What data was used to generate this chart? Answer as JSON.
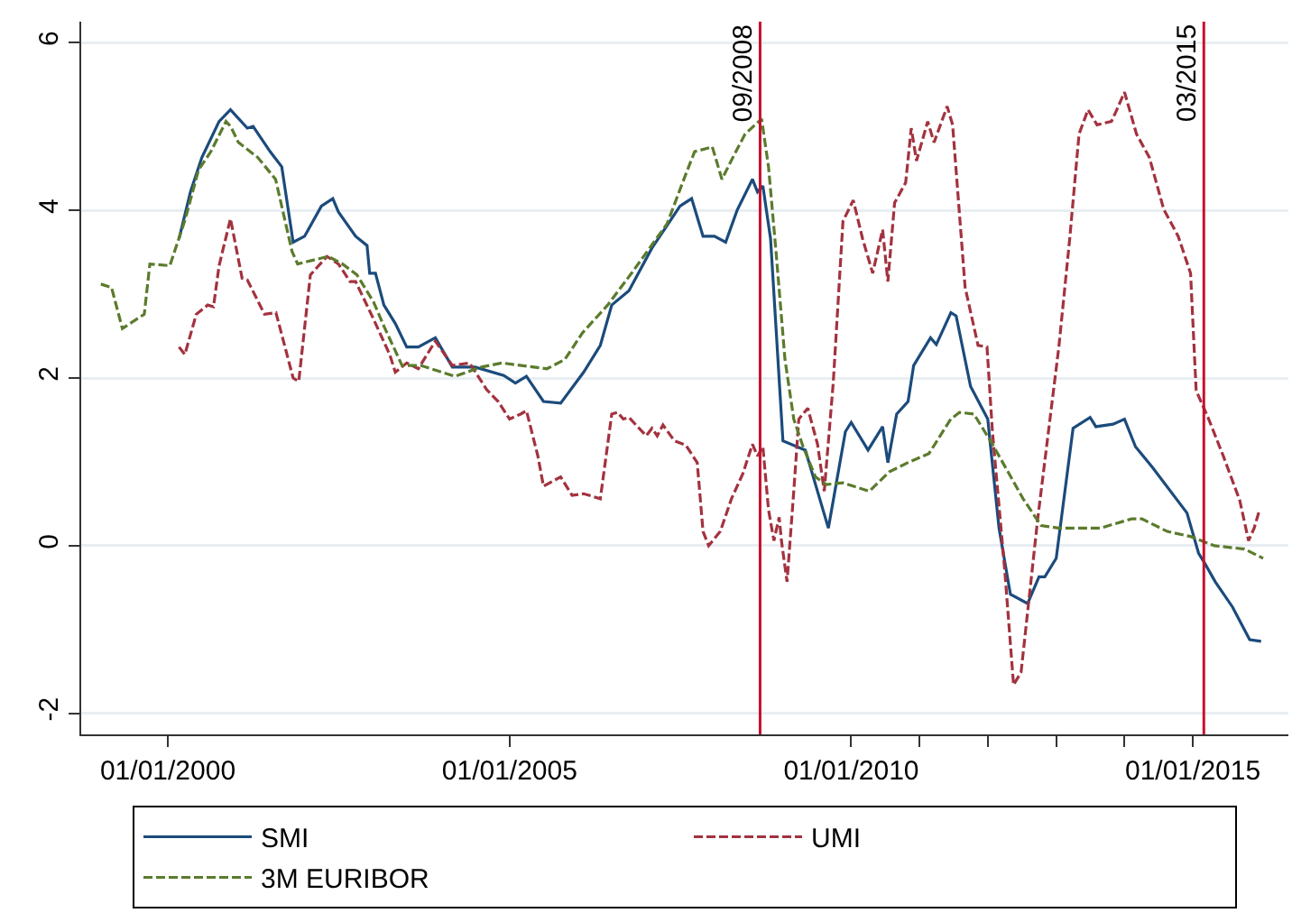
{
  "chart_data": {
    "type": "line",
    "xlim": [
      "1998-09-25",
      "2016-05-26"
    ],
    "ylim": [
      -2.25,
      6.25
    ],
    "xticks": [
      {
        "value": "2000-01-01",
        "label": "01/01/2000"
      },
      {
        "value": "2005-01-01",
        "label": "01/01/2005"
      },
      {
        "value": "2010-01-01",
        "label": "01/01/2010"
      },
      {
        "value": "2011-01-01",
        "label": null
      },
      {
        "value": "2012-01-01",
        "label": null
      },
      {
        "value": "2013-01-01",
        "label": null
      },
      {
        "value": "2014-01-01",
        "label": null
      },
      {
        "value": "2015-01-01",
        "label": "01/01/2015"
      }
    ],
    "yticks": [
      -2,
      0,
      2,
      4,
      6
    ],
    "grid": "y",
    "legend": "bottom",
    "ref_lines": [
      {
        "axis": "x",
        "value": "2008-09",
        "label": "09/2008",
        "color": "#c8102e"
      },
      {
        "axis": "x",
        "value": "2015-03",
        "label": "03/2015",
        "color": "#c8102e"
      }
    ],
    "series": [
      {
        "name": "SMI",
        "color": "#1b4b7c",
        "line_style": "solid",
        "x": [
          "2000-03",
          "2000-05",
          "2000-07",
          "2000-10",
          "2000-12",
          "2001-03",
          "2001-04",
          "2001-07",
          "2001-09",
          "2001-11",
          "2002-01",
          "2002-04",
          "2002-06",
          "2002-07",
          "2002-10",
          "2002-12",
          "2002-12-15",
          "2003-01-15",
          "2003-03",
          "2003-05",
          "2003-07",
          "2003-09",
          "2003-12",
          "2004-03",
          "2004-07",
          "2004-12",
          "2005-02",
          "2005-04",
          "2005-07",
          "2005-10",
          "2006-02",
          "2006-05",
          "2006-07",
          "2006-10",
          "2007-02",
          "2007-07",
          "2007-09",
          "2007-11",
          "2008-01",
          "2008-03",
          "2008-05",
          "2008-07-22",
          "2008-08-18",
          "2008-09-16",
          "2008-10-27",
          "2009-01",
          "2009-05",
          "2009-09",
          "2009-12",
          "2010-01",
          "2010-04",
          "2010-06-18",
          "2010-07-16",
          "2010-09",
          "2010-11",
          "2010-12",
          "2011-03",
          "2011-04",
          "2011-06-18",
          "2011-07-16",
          "2011-10",
          "2012-01",
          "2012-03",
          "2012-05",
          "2012-08",
          "2012-10",
          "2012-11",
          "2013-01",
          "2013-04",
          "2013-07",
          "2013-08",
          "2013-11",
          "2014-01",
          "2014-03",
          "2014-06",
          "2014-12",
          "2015-02",
          "2015-03",
          "2015-05",
          "2015-08",
          "2015-11",
          "2016-01"
        ],
        "values": [
          3.66,
          4.22,
          4.63,
          5.06,
          5.2,
          4.98,
          5.0,
          4.7,
          4.52,
          3.62,
          3.69,
          4.05,
          4.14,
          3.98,
          3.69,
          3.58,
          3.25,
          3.25,
          2.87,
          2.65,
          2.37,
          2.37,
          2.48,
          2.13,
          2.13,
          2.03,
          1.94,
          2.02,
          1.72,
          1.7,
          2.07,
          2.39,
          2.87,
          3.04,
          3.55,
          4.05,
          4.14,
          3.69,
          3.69,
          3.62,
          4.0,
          4.37,
          4.22,
          4.29,
          3.66,
          1.25,
          1.14,
          0.21,
          1.36,
          1.47,
          1.14,
          1.42,
          0.99,
          1.57,
          1.72,
          2.15,
          2.48,
          2.4,
          2.78,
          2.74,
          1.9,
          1.51,
          0.21,
          -0.58,
          -0.69,
          -0.37,
          -0.37,
          -0.15,
          1.4,
          1.53,
          1.42,
          1.45,
          1.51,
          1.18,
          0.93,
          0.39,
          -0.09,
          -0.19,
          -0.43,
          -0.73,
          -1.12,
          -1.14
        ]
      },
      {
        "name": "UMI",
        "color": "#a3323f",
        "line_style": "dashed",
        "x": [
          "2000-03",
          "2000-04",
          "2000-06",
          "2000-08",
          "2000-09",
          "2000-10",
          "2000-12",
          "2001-02",
          "2001-03",
          "2001-06",
          "2001-08",
          "2001-11",
          "2001-12",
          "2002-02",
          "2002-05",
          "2002-07",
          "2002-09",
          "2002-10",
          "2003-01",
          "2003-04",
          "2003-05",
          "2003-07",
          "2003-09",
          "2003-12",
          "2004-03",
          "2004-06",
          "2004-09",
          "2004-11",
          "2005-01",
          "2005-03",
          "2005-04",
          "2005-06",
          "2005-07",
          "2005-10",
          "2005-12",
          "2006-02",
          "2006-05",
          "2006-07",
          "2006-08",
          "2006-09",
          "2006-10",
          "2007-01",
          "2007-02",
          "2007-03",
          "2007-04",
          "2007-06",
          "2007-08",
          "2007-10",
          "2007-11",
          "2007-12",
          "2008-02",
          "2008-04",
          "2008-06",
          "2008-07-22",
          "2008-08-18",
          "2008-09-16",
          "2008-10-16",
          "2008-11-14",
          "2008-12-12",
          "2008-12-24",
          "2009-01-23",
          "2009-02-28",
          "2009-03-27",
          "2009-05-14",
          "2009-07-05",
          "2009-08-10",
          "2009-09-27",
          "2009-11-18",
          "2010-01-12",
          "2010-03-03",
          "2010-04-26",
          "2010-06-18",
          "2010-07-16",
          "2010-08-21",
          "2010-10-19",
          "2010-11-18",
          "2010-12-16",
          "2011-02-14",
          "2011-03-20",
          "2011-05-29",
          "2011-06-27",
          "2011-09-02",
          "2011-11-10",
          "2011-12-28",
          "2012-01-26",
          "2012-04-01",
          "2012-05-18",
          "2012-06-27",
          "2012-09-24",
          "2013-01-15",
          "2013-03-14",
          "2013-05-03",
          "2013-06-20",
          "2013-08-07",
          "2013-10-23",
          "2013-11-21",
          "2014-01-01",
          "2014-03-06",
          "2014-05-14",
          "2014-07-30",
          "2014-10-15",
          "2014-12-20",
          "2015-01-19",
          "2015-03-27",
          "2015-06-13",
          "2015-09-09",
          "2015-10-26",
          "2015-11-25",
          "2015-12-24"
        ],
        "values": [
          2.37,
          2.28,
          2.76,
          2.87,
          2.85,
          3.34,
          3.9,
          3.19,
          3.17,
          2.76,
          2.78,
          2.0,
          1.96,
          3.23,
          3.45,
          3.36,
          3.15,
          3.15,
          2.72,
          2.28,
          2.07,
          2.18,
          2.11,
          2.44,
          2.15,
          2.18,
          1.86,
          1.72,
          1.51,
          1.57,
          1.61,
          1.07,
          0.71,
          0.82,
          0.6,
          0.62,
          0.56,
          1.57,
          1.59,
          1.51,
          1.53,
          1.31,
          1.4,
          1.31,
          1.44,
          1.25,
          1.2,
          0.99,
          0.17,
          0.0,
          0.17,
          0.56,
          0.86,
          1.21,
          1.07,
          1.18,
          0.43,
          0.06,
          0.34,
          0.06,
          -0.43,
          0.65,
          1.51,
          1.64,
          1.21,
          0.65,
          1.94,
          3.87,
          4.12,
          3.66,
          3.25,
          3.77,
          3.15,
          4.09,
          4.33,
          4.98,
          4.59,
          5.06,
          4.81,
          5.24,
          5.02,
          3.08,
          2.39,
          2.37,
          1.36,
          -0.3,
          -1.66,
          -1.51,
          0.32,
          2.37,
          3.66,
          4.91,
          5.2,
          5.02,
          5.06,
          5.2,
          5.41,
          4.91,
          4.63,
          4.01,
          3.69,
          3.25,
          1.85,
          1.51,
          1.07,
          0.54,
          0.06,
          0.21,
          0.43
        ]
      },
      {
        "name": "3M EURIBOR",
        "color": "#5b7b2c",
        "line_style": "dashed",
        "x": [
          "1999-01-08",
          "1999-03-06",
          "1999-05-03",
          "1999-08-28",
          "1999-09-27",
          "2000-01-12",
          "2000-04-04",
          "2000-06-13",
          "2000-08-18",
          "2000-11-07",
          "2000-12-02",
          "2001-01-12",
          "2001-04-26",
          "2001-07-30",
          "2001-10-26",
          "2001-11-25",
          "2002-05-07",
          "2002-07-23",
          "2002-10-08",
          "2003-01-04",
          "2003-03-03",
          "2003-06-06",
          "2003-09-13",
          "2004-03-14",
          "2004-08-03",
          "2004-11-21",
          "2005-07-19",
          "2005-10-23",
          "2006-01-26",
          "2006-06-09",
          "2006-10-15",
          "2007-04-23",
          "2007-07-30",
          "2007-09-17",
          "2007-11-25",
          "2007-12-20",
          "2008-02-10",
          "2008-04-15",
          "2008-06-13",
          "2008-09-09",
          "2008-10-16",
          "2008-11-25",
          "2009-01-12",
          "2009-02-28",
          "2009-04-19",
          "2009-06-24",
          "2009-08-21",
          "2009-11-18",
          "2010-04-08",
          "2010-07-23",
          "2010-10-30",
          "2011-02-21",
          "2011-06-17",
          "2011-08-03",
          "2011-10-19",
          "2012-01-26",
          "2012-07-08",
          "2012-10-12",
          "2013-01-15",
          "2013-08-25",
          "2014-02-07",
          "2014-04-04",
          "2014-08-18",
          "2014-12-20",
          "2015-04-26",
          "2015-10-04",
          "2016-01-12"
        ],
        "values": [
          3.12,
          3.08,
          2.59,
          2.76,
          3.36,
          3.34,
          3.9,
          4.48,
          4.7,
          5.06,
          5.0,
          4.81,
          4.63,
          4.37,
          3.51,
          3.36,
          3.45,
          3.36,
          3.23,
          2.91,
          2.61,
          2.15,
          2.15,
          2.02,
          2.13,
          2.18,
          2.11,
          2.22,
          2.54,
          2.87,
          3.25,
          3.84,
          4.42,
          4.7,
          4.74,
          4.76,
          4.37,
          4.66,
          4.91,
          5.09,
          4.52,
          3.51,
          2.22,
          1.51,
          1.18,
          0.82,
          0.73,
          0.75,
          0.65,
          0.88,
          0.99,
          1.1,
          1.51,
          1.59,
          1.57,
          1.21,
          0.56,
          0.24,
          0.21,
          0.21,
          0.32,
          0.32,
          0.17,
          0.11,
          0.0,
          -0.04,
          -0.15
        ]
      }
    ]
  }
}
